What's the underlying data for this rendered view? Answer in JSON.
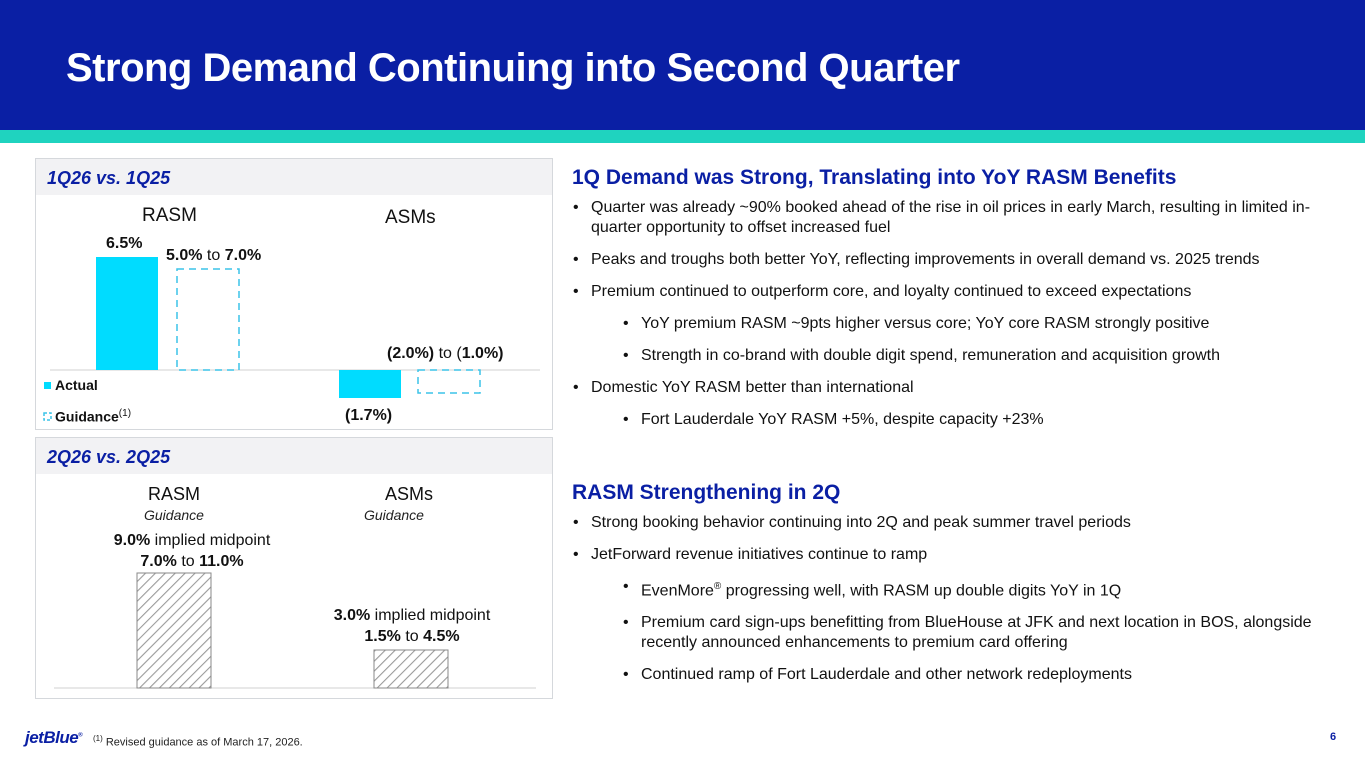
{
  "title": "Strong Demand Continuing into Second Quarter",
  "colors": {
    "brand_blue": "#0a1fa4",
    "accent_teal": "#1fd3bf",
    "bar_cyan": "#00dcff",
    "guidance_dash": "#3cc4e8"
  },
  "panel1": {
    "heading": "1Q26 vs. 1Q25",
    "col_rasm": "RASM",
    "col_asms": "ASMs",
    "rasm_actual_label": "6.5%",
    "rasm_guidance_low": "5.0%",
    "rasm_guidance_high": "7.0%",
    "asms_actual_label": "(1.7%)",
    "asms_guidance_low": "(2.0%)",
    "asms_guidance_high_inner": "1.0%)",
    "connector": "to",
    "legend_actual": "Actual",
    "legend_guidance": "Guidance",
    "legend_footnote_ref": "(1)",
    "chart_data": {
      "type": "bar",
      "categories": [
        "RASM",
        "ASMs"
      ],
      "series": [
        {
          "name": "Actual",
          "values": [
            6.5,
            -1.7
          ]
        },
        {
          "name": "Guidance",
          "values": [
            [
              5.0,
              7.0
            ],
            [
              -2.0,
              -1.0
            ]
          ]
        }
      ],
      "unit": "%"
    }
  },
  "panel2": {
    "heading": "2Q26 vs. 2Q25",
    "col_rasm": "RASM",
    "col_asms": "ASMs",
    "sub_rasm": "Guidance",
    "sub_asms": "Guidance",
    "rasm_mid": "9.0%",
    "rasm_mid_text": "implied midpoint",
    "rasm_low": "7.0%",
    "rasm_high": "11.0%",
    "asms_mid": "3.0%",
    "asms_mid_text": "implied midpoint",
    "asms_low": "1.5%",
    "asms_high": "4.5%",
    "connector": "to",
    "chart_data": {
      "type": "bar",
      "categories": [
        "RASM",
        "ASMs"
      ],
      "series": [
        {
          "name": "Guidance implied midpoint",
          "values": [
            9.0,
            3.0
          ]
        },
        {
          "name": "Guidance range",
          "values": [
            [
              7.0,
              11.0
            ],
            [
              1.5,
              4.5
            ]
          ]
        }
      ],
      "unit": "%"
    }
  },
  "section1": {
    "heading": "1Q Demand was Strong, Translating into YoY RASM Benefits",
    "bullets": [
      "Quarter was already ~90% booked ahead of the rise in oil prices in early March, resulting in limited in-quarter opportunity to offset increased fuel",
      "Peaks and troughs both better YoY, reflecting improvements in overall demand vs. 2025 trends",
      "Premium continued to outperform core, and loyalty continued to exceed expectations",
      "YoY premium RASM ~9pts higher versus core; YoY core RASM strongly positive",
      "Strength in co-brand with double digit spend, remuneration and acquisition growth",
      "Domestic YoY RASM better than international",
      "Fort Lauderdale YoY RASM +5%, despite capacity +23%"
    ]
  },
  "section2": {
    "heading": "RASM Strengthening in 2Q",
    "bullets": [
      "Strong booking behavior continuing into 2Q and peak summer travel periods",
      "JetForward revenue initiatives continue to ramp",
      "Premium card sign-ups benefitting from BlueHouse at JFK and next location in BOS, alongside recently announced enhancements to premium card offering",
      "Continued ramp of Fort Lauderdale and other network redeployments"
    ],
    "evenmore_name": "EvenMore",
    "evenmore_mark": "®",
    "evenmore_rest": " progressing well, with RASM up double digits YoY in 1Q"
  },
  "footer": {
    "logo": "jetBlue",
    "logo_mark": "®",
    "footnote_ref": "(1)",
    "footnote_text": "Revised guidance as of March 17, 2026.",
    "page_number": "6"
  }
}
